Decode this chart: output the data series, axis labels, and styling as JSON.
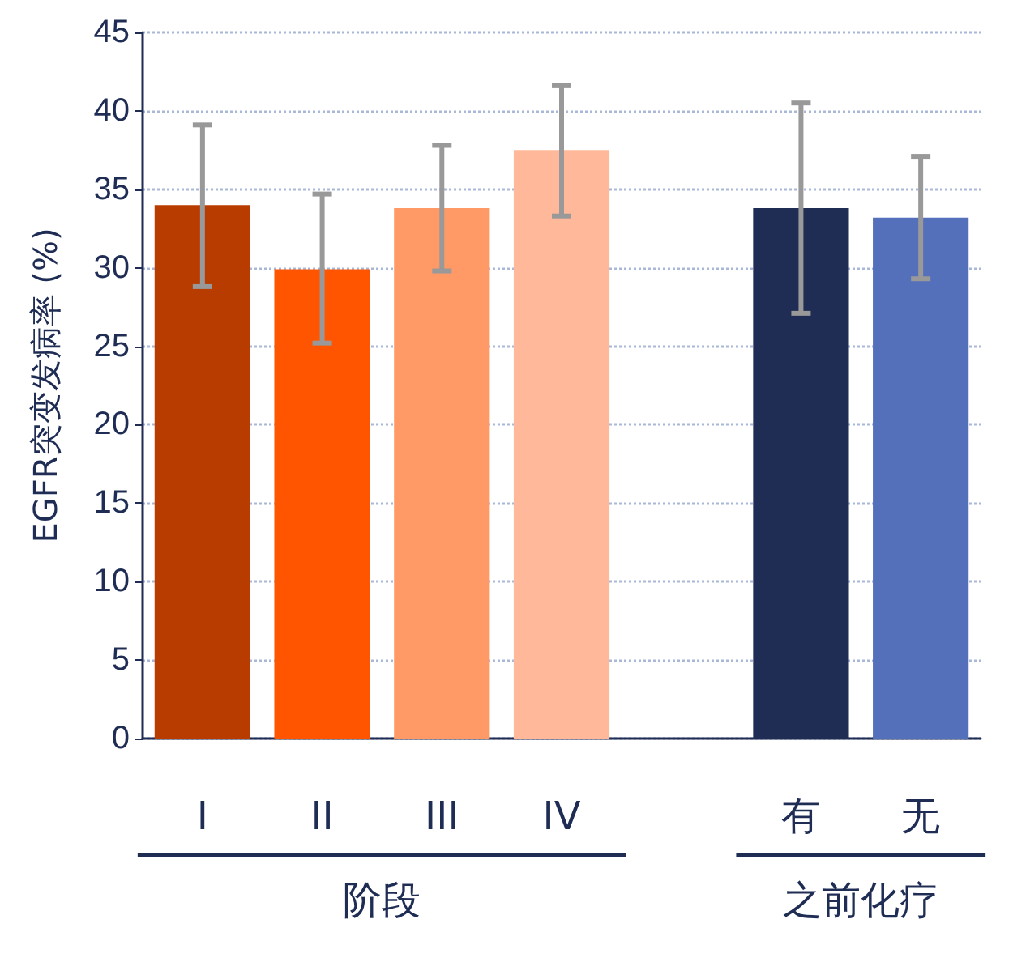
{
  "chart_data": {
    "type": "bar",
    "ylabel": "EGFR突变发病率 (%)",
    "categories": [
      "I",
      "II",
      "III",
      "IV",
      null,
      "有",
      "无"
    ],
    "values": [
      34.0,
      29.9,
      33.8,
      37.5,
      null,
      33.8,
      33.2
    ],
    "colors": [
      "#b83c00",
      "#ff5500",
      "#ff9966",
      "#ffb899",
      "#ffffff",
      "#1f2d55",
      "#5570bb"
    ],
    "errors": [
      [
        28.8,
        39.1
      ],
      [
        25.2,
        34.7
      ],
      [
        29.8,
        37.8
      ],
      [
        33.3,
        41.6
      ],
      null,
      [
        27.1,
        40.5
      ],
      [
        29.3,
        37.1
      ]
    ],
    "annotations": [
      "阶段",
      "之前化疗"
    ],
    "ylim": [
      0,
      45
    ],
    "yticks": [
      0,
      5,
      10,
      15,
      20,
      25,
      30,
      35,
      40,
      45
    ],
    "grid": "y"
  }
}
